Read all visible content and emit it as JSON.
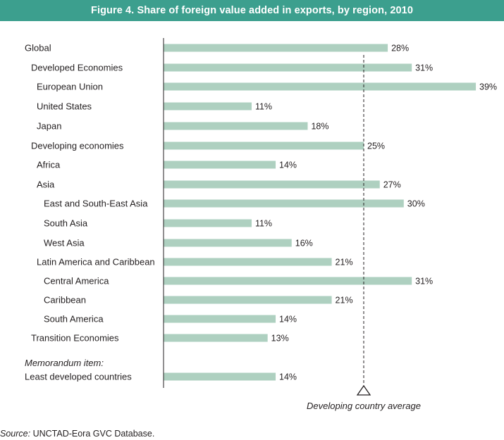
{
  "title": "Figure 4. Share of foreign value added in exports, by region, 2010",
  "chart_data": {
    "type": "bar",
    "orientation": "horizontal",
    "title": "Figure 4. Share of foreign value added in exports, by region, 2010",
    "xlim": [
      0,
      40
    ],
    "unit": "%",
    "categories": [
      {
        "label": "Global",
        "value": 28,
        "value_label": "28%",
        "indent": 0
      },
      {
        "label": "Developed Economies",
        "value": 31,
        "value_label": "31%",
        "indent": 1
      },
      {
        "label": "European Union",
        "value": 39,
        "value_label": "39%",
        "indent": 2
      },
      {
        "label": "United States",
        "value": 11,
        "value_label": "11%",
        "indent": 2
      },
      {
        "label": "Japan",
        "value": 18,
        "value_label": "18%",
        "indent": 2
      },
      {
        "label": "Developing economies",
        "value": 25,
        "value_label": "25%",
        "indent": 1
      },
      {
        "label": "Africa",
        "value": 14,
        "value_label": "14%",
        "indent": 2
      },
      {
        "label": "Asia",
        "value": 27,
        "value_label": "27%",
        "indent": 2
      },
      {
        "label": "East and South-East Asia",
        "value": 30,
        "value_label": "30%",
        "indent": 3
      },
      {
        "label": "South Asia",
        "value": 11,
        "value_label": "11%",
        "indent": 3
      },
      {
        "label": "West Asia",
        "value": 16,
        "value_label": "16%",
        "indent": 3
      },
      {
        "label": "Latin America and Caribbean",
        "value": 21,
        "value_label": "21%",
        "indent": 2
      },
      {
        "label": "Central America",
        "value": 31,
        "value_label": "31%",
        "indent": 3
      },
      {
        "label": "Caribbean",
        "value": 21,
        "value_label": "21%",
        "indent": 3
      },
      {
        "label": "South America",
        "value": 14,
        "value_label": "14%",
        "indent": 3
      },
      {
        "label": "Transition Economies",
        "value": 13,
        "value_label": "13%",
        "indent": 1
      },
      {
        "label": "Least developed countries",
        "value": 14,
        "value_label": "14%",
        "indent": 0
      }
    ],
    "memorandum_label": "Memorandum item:",
    "reference_line": {
      "value": 25,
      "label": "Developing country average"
    },
    "colors": {
      "bar": "#aed0c0",
      "title_bg": "#3c9f8e",
      "axis": "#231f20"
    }
  },
  "source": {
    "label": "Source:",
    "text": "UNCTAD-Eora GVC Database."
  }
}
